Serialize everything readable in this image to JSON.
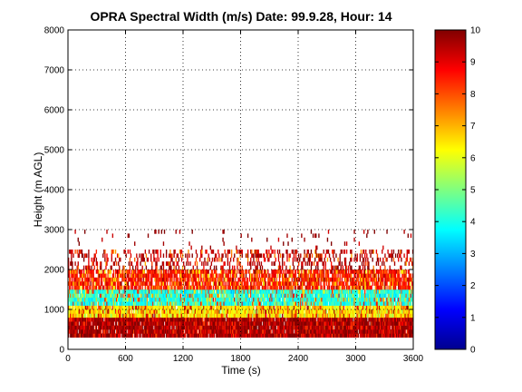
{
  "chart_data": {
    "type": "heatmap",
    "title": "OPRA Spectral Width (m/s)  Date: 99.9.28, Hour: 14",
    "xlabel": "Time (s)",
    "ylabel": "Height (m AGL)",
    "xlim": [
      0,
      3600
    ],
    "ylim": [
      0,
      8000
    ],
    "x_ticks": [
      0,
      600,
      1200,
      1800,
      2400,
      3000,
      3600
    ],
    "y_ticks": [
      0,
      1000,
      2000,
      3000,
      4000,
      5000,
      6000,
      7000,
      8000
    ],
    "grid": true,
    "colorbar": {
      "range": [
        0,
        10
      ],
      "ticks": [
        0,
        1,
        2,
        3,
        4,
        5,
        6,
        7,
        8,
        9,
        10
      ],
      "colormap": "jet"
    },
    "layers": [
      {
        "height_range": [
          300,
          800
        ],
        "dominant_value": 9.8,
        "description_value_range": [
          8,
          10
        ]
      },
      {
        "height_range": [
          800,
          1100
        ],
        "dominant_value": 6.5,
        "description_value_range": [
          5,
          10
        ]
      },
      {
        "height_range": [
          1100,
          1500
        ],
        "dominant_value": 4.0,
        "description_value_range": [
          3,
          9
        ]
      },
      {
        "height_range": [
          1500,
          2000
        ],
        "dominant_value": 8.5,
        "description_value_range": [
          6,
          10
        ]
      },
      {
        "height_range": [
          2000,
          2500
        ],
        "dominant_value": 9.5,
        "description_value_range": [
          7,
          10
        ]
      },
      {
        "height_range": [
          2500,
          3000
        ],
        "dominant_value": 9.8,
        "description_value_range": [
          9,
          10
        ]
      }
    ]
  }
}
